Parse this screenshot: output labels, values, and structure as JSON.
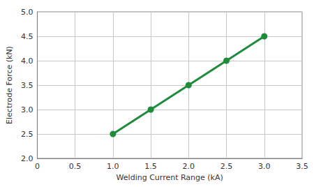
{
  "chart_data": {
    "type": "line",
    "xlabel": "Welding Current Range (kA)",
    "ylabel": "Electrode Force (kN)",
    "x": [
      1.0,
      1.5,
      2.0,
      2.5,
      3.0
    ],
    "values": [
      2.5,
      3.0,
      3.5,
      4.0,
      4.5
    ],
    "color": "#1e8c3a",
    "marker": "circle",
    "xlim": [
      0,
      3.5
    ],
    "xticks": [
      0,
      0.5,
      {
        "value": 1,
        "label": "1.0"
      },
      1.5,
      {
        "value": 2,
        "label": "2.0"
      },
      2.5,
      {
        "value": 3,
        "label": "3.0"
      },
      3.5
    ],
    "ylim": [
      2,
      5
    ],
    "yticks": [
      {
        "value": 2,
        "label": "2.0"
      },
      2.5,
      {
        "value": 3,
        "label": "3.0"
      },
      3.5,
      {
        "value": 4,
        "label": "4.0"
      },
      4.5,
      {
        "value": 5,
        "label": "5.0"
      }
    ],
    "grid": true
  }
}
